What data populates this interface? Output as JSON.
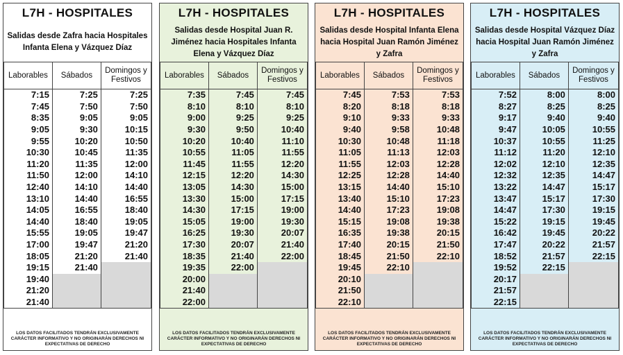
{
  "footer": "LOS DATOS FACILITADOS TENDRÁN EXCLUSIVAMENTE CARÁCTER INFORMATIVO Y NO ORIGINARÁN DERECHOS NI EXPECTATIVAS DE DERECHO",
  "headers": [
    "Laborables",
    "Sábados",
    "Domingos y Festivos"
  ],
  "panels": [
    {
      "title": "L7H - HOSPITALES",
      "subtitle": "Salidas desde Zafra hacia Hospitales Infanta Elena y Vázquez Díaz",
      "bg": "#ffffff",
      "rows": [
        [
          "7:15",
          "7:25",
          "7:25"
        ],
        [
          "7:45",
          "7:50",
          "7:50"
        ],
        [
          "8:35",
          "9:05",
          "9:05"
        ],
        [
          "9:05",
          "9:30",
          "10:15"
        ],
        [
          "9:55",
          "10:20",
          "10:50"
        ],
        [
          "10:30",
          "10:45",
          "11:35"
        ],
        [
          "11:20",
          "11:35",
          "12:00"
        ],
        [
          "11:50",
          "12:00",
          "14:10"
        ],
        [
          "12:40",
          "14:10",
          "14:40"
        ],
        [
          "13:10",
          "14:40",
          "16:55"
        ],
        [
          "14:05",
          "16:55",
          "18:40"
        ],
        [
          "14:40",
          "18:40",
          "19:05"
        ],
        [
          "15:55",
          "19:05",
          "19:47"
        ],
        [
          "17:00",
          "19:47",
          "21:20"
        ],
        [
          "18:05",
          "21:20",
          "21:40"
        ],
        [
          "19:15",
          "21:40",
          ""
        ],
        [
          "19:40",
          "",
          ""
        ],
        [
          "21:20",
          "",
          ""
        ],
        [
          "21:40",
          "",
          ""
        ]
      ]
    },
    {
      "title": "L7H - HOSPITALES",
      "subtitle": "Salidas desde Hospital Juan R. Jiménez hacia Hospitales Infanta Elena y Vázquez Díaz",
      "bg": "#e8f2dc",
      "rows": [
        [
          "7:35",
          "7:45",
          "7:45"
        ],
        [
          "8:10",
          "8:10",
          "8:10"
        ],
        [
          "9:00",
          "9:25",
          "9:25"
        ],
        [
          "9:30",
          "9:50",
          "10:40"
        ],
        [
          "10:20",
          "10:40",
          "11:10"
        ],
        [
          "10:55",
          "11:05",
          "11:55"
        ],
        [
          "11:45",
          "11:55",
          "12:20"
        ],
        [
          "12:15",
          "12:20",
          "14:30"
        ],
        [
          "13:05",
          "14:30",
          "15:00"
        ],
        [
          "13:30",
          "15:00",
          "17:15"
        ],
        [
          "14:30",
          "17:15",
          "19:00"
        ],
        [
          "15:05",
          "19:00",
          "19:30"
        ],
        [
          "16:25",
          "19:30",
          "20:07"
        ],
        [
          "17:30",
          "20:07",
          "21:40"
        ],
        [
          "18:35",
          "21:40",
          "22:00"
        ],
        [
          "19:35",
          "22:00",
          ""
        ],
        [
          "20:00",
          "",
          ""
        ],
        [
          "21:40",
          "",
          ""
        ],
        [
          "22:00",
          "",
          ""
        ]
      ]
    },
    {
      "title": "L7H - HOSPITALES",
      "subtitle": "Salidas desde Hospital Infanta Elena hacia Hospital Juan Ramón Jiménez y Zafra",
      "bg": "#fbe3d2",
      "rows": [
        [
          "7:45",
          "7:53",
          "7:53"
        ],
        [
          "8:20",
          "8:18",
          "8:18"
        ],
        [
          "9:10",
          "9:33",
          "9:33"
        ],
        [
          "9:40",
          "9:58",
          "10:48"
        ],
        [
          "10:30",
          "10:48",
          "11:18"
        ],
        [
          "11:05",
          "11:13",
          "12:03"
        ],
        [
          "11:55",
          "12:03",
          "12:28"
        ],
        [
          "12:25",
          "12:28",
          "14:40"
        ],
        [
          "13:15",
          "14:40",
          "15:10"
        ],
        [
          "13:40",
          "15:10",
          "17:23"
        ],
        [
          "14:40",
          "17:23",
          "19:08"
        ],
        [
          "15:15",
          "19:08",
          "19:38"
        ],
        [
          "16:35",
          "19:38",
          "20:15"
        ],
        [
          "17:40",
          "20:15",
          "21:50"
        ],
        [
          "18:45",
          "21:50",
          "22:10"
        ],
        [
          "19:45",
          "22:10",
          ""
        ],
        [
          "20:10",
          "",
          ""
        ],
        [
          "21:50",
          "",
          ""
        ],
        [
          "22:10",
          "",
          ""
        ]
      ]
    },
    {
      "title": "L7H - HOSPITALES",
      "subtitle": "Salidas desde Hospital Vázquez Díaz hacia Hospital Juan Ramón Jiménez y Zafra",
      "bg": "#d8eef6",
      "rows": [
        [
          "7:52",
          "8:00",
          "8:00"
        ],
        [
          "8:27",
          "8:25",
          "8:25"
        ],
        [
          "9:17",
          "9:40",
          "9:40"
        ],
        [
          "9:47",
          "10:05",
          "10:55"
        ],
        [
          "10:37",
          "10:55",
          "11:25"
        ],
        [
          "11:12",
          "11:20",
          "12:10"
        ],
        [
          "12:02",
          "12:10",
          "12:35"
        ],
        [
          "12:32",
          "12:35",
          "14:47"
        ],
        [
          "13:22",
          "14:47",
          "15:17"
        ],
        [
          "13:47",
          "15:17",
          "17:30"
        ],
        [
          "14:47",
          "17:30",
          "19:15"
        ],
        [
          "15:22",
          "19:15",
          "19:45"
        ],
        [
          "16:42",
          "19:45",
          "20:22"
        ],
        [
          "17:47",
          "20:22",
          "21:57"
        ],
        [
          "18:52",
          "21:57",
          "22:15"
        ],
        [
          "19:52",
          "22:15",
          ""
        ],
        [
          "20:17",
          "",
          ""
        ],
        [
          "21:57",
          "",
          ""
        ],
        [
          "22:15",
          "",
          ""
        ]
      ]
    }
  ]
}
